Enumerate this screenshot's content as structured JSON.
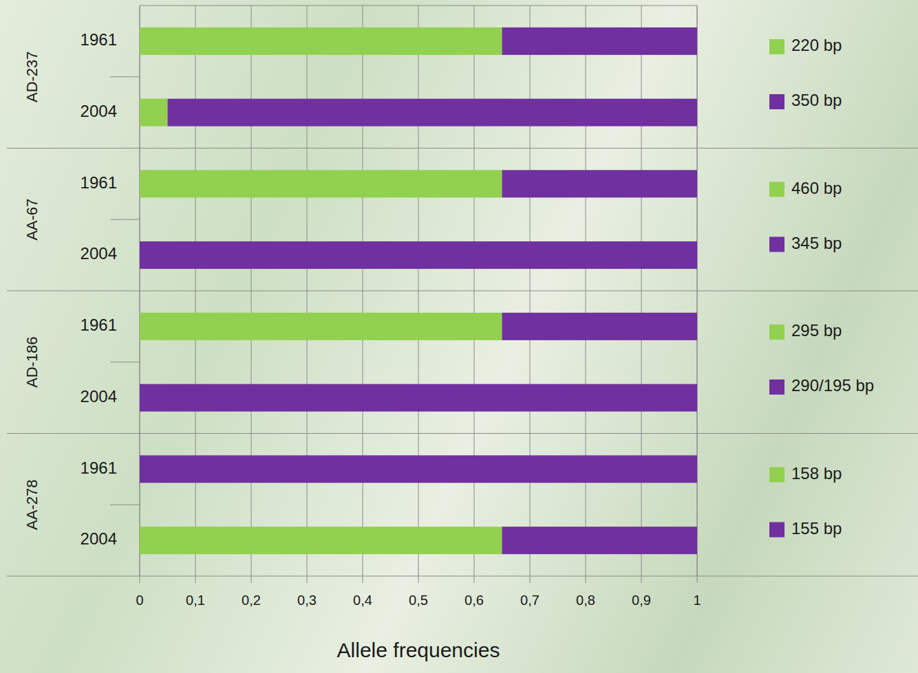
{
  "chart_data": [
    {
      "type": "bar",
      "orientation": "horizontal",
      "stacked": true,
      "grid": true,
      "legend": "right",
      "tick_labels": "y",
      "title": "AD-237",
      "categories": [
        "1961",
        "2004"
      ],
      "series": [
        {
          "name": "220 bp",
          "color": "#92d050",
          "values": [
            0.65,
            0.05
          ]
        },
        {
          "name": "350 bp",
          "color": "#7030a0",
          "values": [
            0.35,
            0.95
          ]
        }
      ],
      "xlim": [
        0,
        1
      ],
      "xticks": [
        0,
        0.1,
        0.2,
        0.3,
        0.4,
        0.5,
        0.6,
        0.7,
        0.8,
        0.9,
        1
      ]
    },
    {
      "type": "bar",
      "orientation": "horizontal",
      "stacked": true,
      "grid": true,
      "legend": "right",
      "tick_labels": "y",
      "title": "AA-67",
      "categories": [
        "1961",
        "2004"
      ],
      "series": [
        {
          "name": "460 bp",
          "color": "#92d050",
          "values": [
            0.65,
            0
          ]
        },
        {
          "name": "345 bp",
          "color": "#7030a0",
          "values": [
            0.35,
            1
          ]
        }
      ],
      "xlim": [
        0,
        1
      ],
      "xticks": [
        0,
        0.1,
        0.2,
        0.3,
        0.4,
        0.5,
        0.6,
        0.7,
        0.8,
        0.9,
        1
      ]
    },
    {
      "type": "bar",
      "orientation": "horizontal",
      "stacked": true,
      "grid": true,
      "legend": "right",
      "tick_labels": "y",
      "title": "AD-186",
      "categories": [
        "1961",
        "2004"
      ],
      "series": [
        {
          "name": "295 bp",
          "color": "#92d050",
          "values": [
            0.65,
            0
          ]
        },
        {
          "name": "290/195 bp",
          "color": "#7030a0",
          "values": [
            0.35,
            1
          ]
        }
      ],
      "xlim": [
        0,
        1
      ],
      "xticks": [
        0,
        0.1,
        0.2,
        0.3,
        0.4,
        0.5,
        0.6,
        0.7,
        0.8,
        0.9,
        1
      ]
    },
    {
      "type": "bar",
      "orientation": "horizontal",
      "stacked": true,
      "grid": true,
      "legend": "right",
      "title": "AA-278",
      "xlabel": "Allele frequencies",
      "categories": [
        "1961",
        "2004"
      ],
      "series": [
        {
          "name": "158 bp",
          "color": "#92d050",
          "values": [
            0,
            0.65
          ]
        },
        {
          "name": "155 bp",
          "color": "#7030a0",
          "values": [
            1,
            0.35
          ]
        }
      ],
      "xlim": [
        0,
        1
      ],
      "xticks": [
        0,
        {
          "value": 0.1,
          "label": "0,1"
        },
        {
          "value": 0.2,
          "label": "0,2"
        },
        {
          "value": 0.3,
          "label": "0,3"
        },
        {
          "value": 0.4,
          "label": "0,4"
        },
        {
          "value": 0.5,
          "label": "0,5"
        },
        {
          "value": 0.6,
          "label": "0,6"
        },
        {
          "value": 0.7,
          "label": "0,7"
        },
        {
          "value": 0.8,
          "label": "0,8"
        },
        {
          "value": 0.9,
          "label": "0,9"
        },
        1
      ]
    }
  ]
}
